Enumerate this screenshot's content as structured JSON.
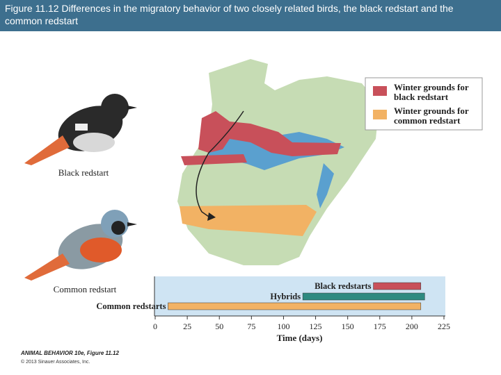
{
  "header": {
    "title": "Figure 11.12  Differences in the migratory behavior of two closely related birds, the black redstart and the common redstart"
  },
  "birds": [
    "Black redstart",
    "Common redstart"
  ],
  "map_legend": [
    {
      "label": "Winter grounds for black redstart",
      "color": "#c8505a"
    },
    {
      "label": "Winter grounds for common redstart",
      "color": "#f2b264"
    }
  ],
  "chart_data": {
    "type": "bar",
    "orientation": "horizontal",
    "categories": [
      "Black redstarts",
      "Hybrids",
      "Common redstarts"
    ],
    "starts": [
      170,
      115,
      10
    ],
    "values": [
      207,
      210,
      207
    ],
    "colors": [
      "#c8505a",
      "#2e8a80",
      "#f2b264"
    ],
    "xlabel": "Time (days)",
    "xlim": [
      0,
      225
    ],
    "xticks": [
      0,
      25,
      50,
      75,
      100,
      125,
      150,
      175,
      200,
      225
    ]
  },
  "credits": [
    "ANIMAL BEHAVIOR 10e, Figure 11.12",
    "© 2013 Sinauer Associates, Inc."
  ]
}
